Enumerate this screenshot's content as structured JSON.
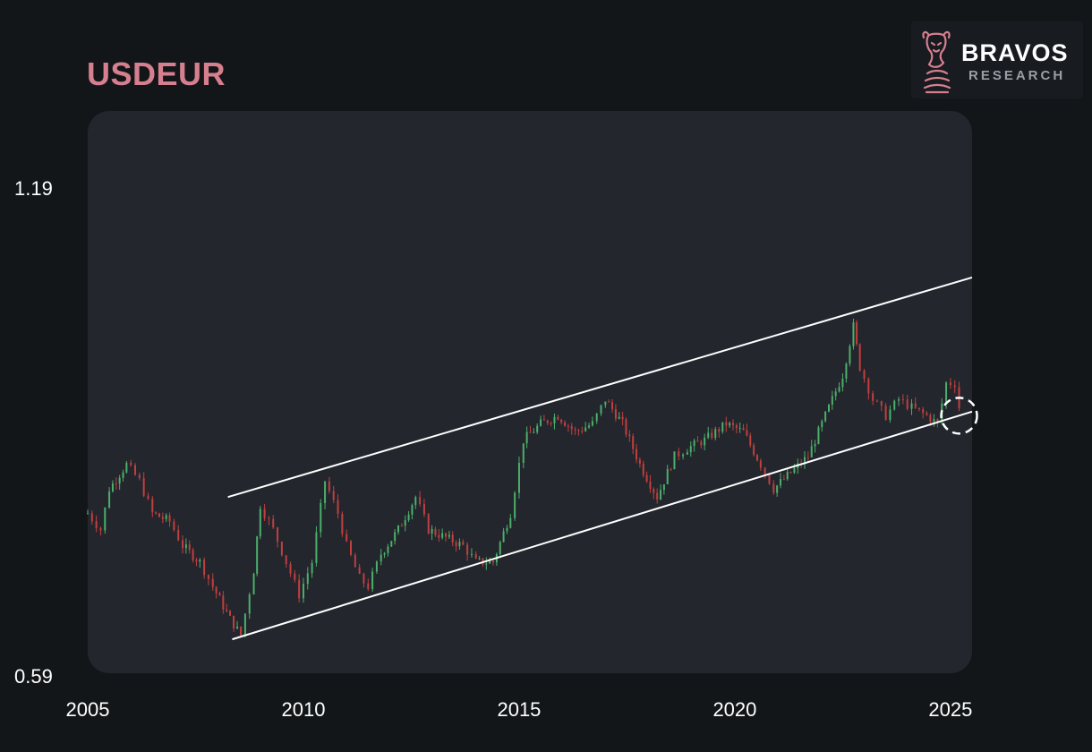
{
  "header": {
    "title": "USDEUR"
  },
  "brand": {
    "name": "BRAVOS",
    "sub": "RESEARCH",
    "logo_icon": "bull-knight-icon",
    "color": "#d67f8e"
  },
  "chart_data": {
    "type": "candlestick",
    "title": "USDEUR",
    "xlabel": "",
    "ylabel": "",
    "x_ticks": [
      "2005",
      "2010",
      "2015",
      "2020",
      "2025"
    ],
    "y_ticks": [
      1.19,
      0.59
    ],
    "xlim": [
      2005.0,
      2025.5
    ],
    "ylim": [
      0.59,
      1.19
    ],
    "grid": false,
    "up_color": "#4caf6a",
    "down_color": "#c0403f",
    "series": [
      {
        "values": [
          [
            2005.0,
            0.79
          ],
          [
            2005.3,
            0.77
          ],
          [
            2005.5,
            0.82
          ],
          [
            2005.9,
            0.85
          ],
          [
            2006.2,
            0.83
          ],
          [
            2006.5,
            0.79
          ],
          [
            2006.9,
            0.78
          ],
          [
            2007.2,
            0.75
          ],
          [
            2007.6,
            0.73
          ],
          [
            2007.9,
            0.7
          ],
          [
            2008.3,
            0.66
          ],
          [
            2008.55,
            0.64
          ],
          [
            2008.85,
            0.72
          ],
          [
            2009.0,
            0.8
          ],
          [
            2009.3,
            0.77
          ],
          [
            2009.6,
            0.73
          ],
          [
            2009.9,
            0.69
          ],
          [
            2010.2,
            0.73
          ],
          [
            2010.5,
            0.83
          ],
          [
            2010.8,
            0.79
          ],
          [
            2011.0,
            0.75
          ],
          [
            2011.3,
            0.71
          ],
          [
            2011.5,
            0.7
          ],
          [
            2011.8,
            0.74
          ],
          [
            2012.2,
            0.77
          ],
          [
            2012.6,
            0.81
          ],
          [
            2012.9,
            0.77
          ],
          [
            2013.3,
            0.76
          ],
          [
            2013.7,
            0.75
          ],
          [
            2014.0,
            0.73
          ],
          [
            2014.4,
            0.73
          ],
          [
            2014.8,
            0.79
          ],
          [
            2015.1,
            0.88
          ],
          [
            2015.5,
            0.9
          ],
          [
            2015.9,
            0.91
          ],
          [
            2016.3,
            0.89
          ],
          [
            2016.7,
            0.9
          ],
          [
            2017.0,
            0.93
          ],
          [
            2017.4,
            0.9
          ],
          [
            2017.8,
            0.85
          ],
          [
            2018.2,
            0.81
          ],
          [
            2018.6,
            0.86
          ],
          [
            2018.9,
            0.87
          ],
          [
            2019.3,
            0.88
          ],
          [
            2019.8,
            0.9
          ],
          [
            2020.2,
            0.89
          ],
          [
            2020.6,
            0.85
          ],
          [
            2020.9,
            0.82
          ],
          [
            2021.3,
            0.84
          ],
          [
            2021.7,
            0.86
          ],
          [
            2022.1,
            0.91
          ],
          [
            2022.5,
            0.96
          ],
          [
            2022.75,
            1.02
          ],
          [
            2022.9,
            0.97
          ],
          [
            2023.2,
            0.93
          ],
          [
            2023.5,
            0.91
          ],
          [
            2023.8,
            0.93
          ],
          [
            2024.1,
            0.92
          ],
          [
            2024.45,
            0.91
          ],
          [
            2024.7,
            0.9
          ],
          [
            2024.9,
            0.95
          ],
          [
            2025.1,
            0.95
          ],
          [
            2025.3,
            0.89
          ]
        ]
      }
    ],
    "channel": {
      "upper": [
        [
          2008.25,
          0.81
        ],
        [
          2025.5,
          1.08
        ]
      ],
      "lower": [
        [
          2008.35,
          0.635
        ],
        [
          2025.5,
          0.915
        ]
      ]
    },
    "annotations": [
      {
        "type": "dashed-circle",
        "x": 2025.2,
        "y": 0.91
      }
    ]
  }
}
